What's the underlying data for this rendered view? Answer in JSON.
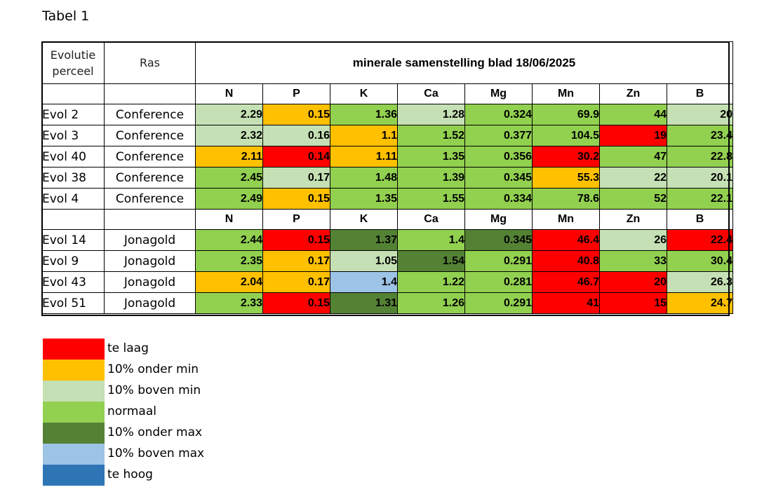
{
  "caption": "Tabel 1",
  "header": {
    "col1": "Evolutie perceel",
    "col1_line1": "Evolutie",
    "col1_line2": "perceel",
    "col2": "Ras",
    "title": "minerale samenstelling blad 18/06/2025"
  },
  "elements": [
    "N",
    "P",
    "K",
    "Ca",
    "Mg",
    "Mn",
    "Zn",
    "B"
  ],
  "colors": {
    "laag": "#ff0000",
    "onder_min": "#ffc000",
    "boven_min": "#c5e0b4",
    "normaal": "#92d050",
    "onder_max": "#548235",
    "boven_max": "#9dc3e6",
    "hoog": "#2e75b6"
  },
  "groups": [
    {
      "rows": [
        {
          "id": "Evol 2",
          "ras": "Conference",
          "values": [
            "2.29",
            "0.15",
            "1.36",
            "1.28",
            "0.324",
            "69.9",
            "44",
            "20"
          ],
          "status": [
            "boven_min",
            "onder_min",
            "normaal",
            "boven_min",
            "normaal",
            "normaal",
            "normaal",
            "boven_min"
          ]
        },
        {
          "id": "Evol 3",
          "ras": "Conference",
          "values": [
            "2.32",
            "0.16",
            "1.1",
            "1.52",
            "0.377",
            "104.5",
            "19",
            "23.4"
          ],
          "status": [
            "boven_min",
            "boven_min",
            "onder_min",
            "normaal",
            "normaal",
            "normaal",
            "laag",
            "normaal"
          ]
        },
        {
          "id": "Evol 40",
          "ras": "Conference",
          "values": [
            "2.11",
            "0.14",
            "1.11",
            "1.35",
            "0.356",
            "30.2",
            "47",
            "22.8"
          ],
          "status": [
            "onder_min",
            "laag",
            "onder_min",
            "normaal",
            "normaal",
            "laag",
            "normaal",
            "normaal"
          ]
        },
        {
          "id": "Evol 38",
          "ras": "Conference",
          "values": [
            "2.45",
            "0.17",
            "1.48",
            "1.39",
            "0.345",
            "55.3",
            "22",
            "20.1"
          ],
          "status": [
            "normaal",
            "boven_min",
            "normaal",
            "normaal",
            "normaal",
            "onder_min",
            "boven_min",
            "boven_min"
          ]
        },
        {
          "id": "Evol 4",
          "ras": "Conference",
          "values": [
            "2.49",
            "0.15",
            "1.35",
            "1.55",
            "0.334",
            "78.6",
            "52",
            "22.1"
          ],
          "status": [
            "normaal",
            "onder_min",
            "normaal",
            "normaal",
            "normaal",
            "normaal",
            "normaal",
            "normaal"
          ]
        }
      ]
    },
    {
      "rows": [
        {
          "id": "Evol 14",
          "ras": "Jonagold",
          "values": [
            "2.44",
            "0.15",
            "1.37",
            "1.4",
            "0.345",
            "46.4",
            "26",
            "22.4"
          ],
          "status": [
            "normaal",
            "laag",
            "onder_max",
            "normaal",
            "onder_max",
            "laag",
            "boven_min",
            "laag"
          ]
        },
        {
          "id": "Evol 9",
          "ras": "Jonagold",
          "values": [
            "2.35",
            "0.17",
            "1.05",
            "1.54",
            "0.291",
            "40.8",
            "33",
            "30.4"
          ],
          "status": [
            "normaal",
            "onder_min",
            "boven_min",
            "onder_max",
            "normaal",
            "laag",
            "normaal",
            "normaal"
          ]
        },
        {
          "id": "Evol 43",
          "ras": "Jonagold",
          "values": [
            "2.04",
            "0.17",
            "1.4",
            "1.22",
            "0.281",
            "46.7",
            "20",
            "26.3"
          ],
          "status": [
            "onder_min",
            "onder_min",
            "boven_max",
            "normaal",
            "normaal",
            "laag",
            "laag",
            "boven_min"
          ]
        },
        {
          "id": "Evol 51",
          "ras": "Jonagold",
          "values": [
            "2.33",
            "0.15",
            "1.31",
            "1.26",
            "0.291",
            "41",
            "15",
            "24.7"
          ],
          "status": [
            "normaal",
            "laag",
            "onder_max",
            "normaal",
            "normaal",
            "laag",
            "laag",
            "onder_min"
          ]
        }
      ]
    }
  ],
  "legend": [
    {
      "key": "laag",
      "label": "te laag"
    },
    {
      "key": "onder_min",
      "label": "10% onder min"
    },
    {
      "key": "boven_min",
      "label": "10% boven min"
    },
    {
      "key": "normaal",
      "label": "normaal"
    },
    {
      "key": "onder_max",
      "label": "10% onder max"
    },
    {
      "key": "boven_max",
      "label": "10% boven max"
    },
    {
      "key": "hoog",
      "label": "te hoog"
    }
  ]
}
